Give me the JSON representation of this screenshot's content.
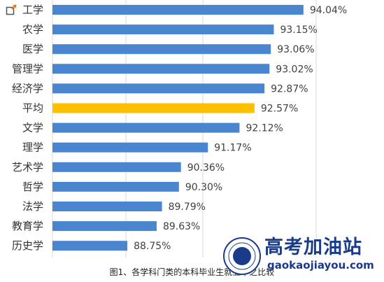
{
  "chart_data": {
    "type": "bar",
    "orientation": "horizontal",
    "categories": [
      "工学",
      "农学",
      "医学",
      "管理学",
      "经济学",
      "平均",
      "文学",
      "理学",
      "艺术学",
      "哲学",
      "法学",
      "教育学",
      "历史学"
    ],
    "values": [
      94.04,
      93.15,
      93.06,
      93.02,
      92.87,
      92.57,
      92.12,
      91.17,
      90.36,
      90.3,
      89.79,
      89.63,
      88.75
    ],
    "value_labels": [
      "94.04%",
      "93.15%",
      "93.06%",
      "93.02%",
      "92.87%",
      "92.57%",
      "92.12%",
      "91.17%",
      "90.36%",
      "90.30%",
      "89.79%",
      "89.63%",
      "88.75%"
    ],
    "highlight_category": "平均",
    "xlim": [
      86.5,
      94.8
    ],
    "grid": "vertical",
    "colors": {
      "bar": "#4a86d0",
      "highlight": "#ffc000",
      "grid": "#d9d9d9"
    },
    "caption": "图1、各学科门类的本科毕业生就业率之比较"
  },
  "watermark": {
    "name": "高考加油站",
    "url": "gaokaojiayou.com",
    "logo_text": "GK"
  },
  "icons": {
    "corner": "expand-icon"
  }
}
